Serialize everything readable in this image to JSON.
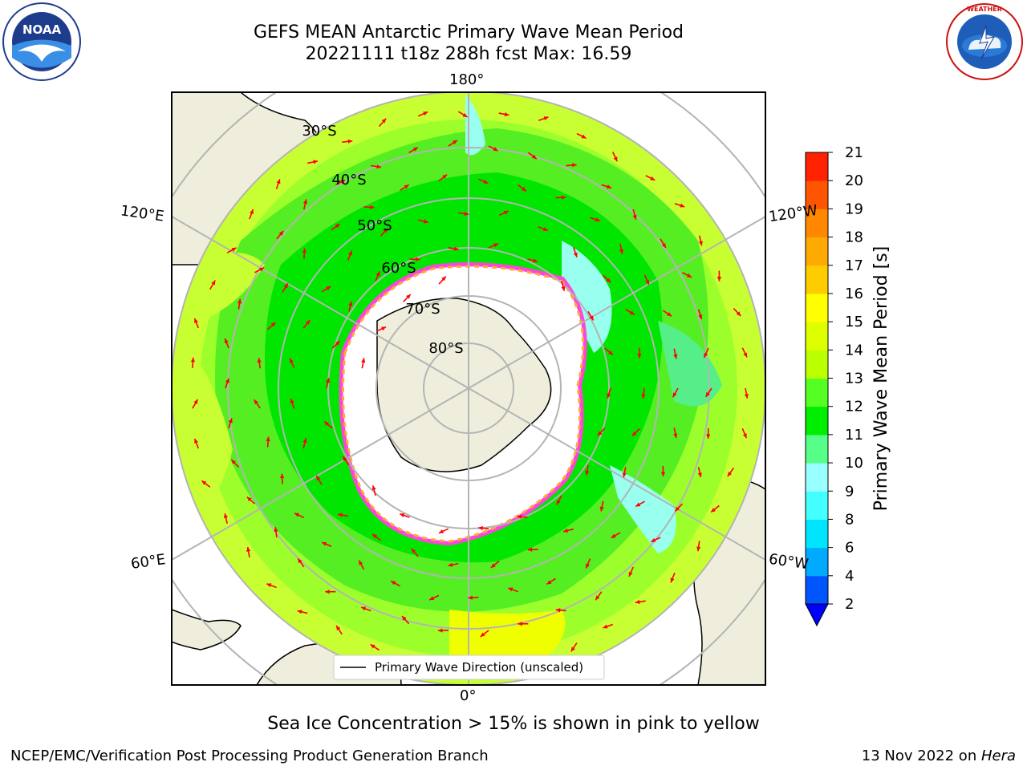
{
  "header": {
    "title_line1": "GEFS MEAN Antarctic Primary Wave Mean Period",
    "title_line2": "20221111 t18z 288h fcst   Max: 16.59"
  },
  "logos": {
    "noara_text": "NOAA",
    "noara_ring": "NATIONAL OCEANIC AND ATMOSPHERIC ADMINISTRATION · U.S. DEPARTMENT OF COMMERCE",
    "nws_ring": "NATIONAL WEATHER SERVICE"
  },
  "map": {
    "projection": "south polar stereographic",
    "lon_labels": {
      "top": "180°",
      "bottom": "0°",
      "left_upper": "120°E",
      "left_lower": "60°E",
      "right_upper": "120°W",
      "right_lower": "60°W"
    },
    "lat_labels": [
      "30°S",
      "40°S",
      "50°S",
      "60°S",
      "70°S",
      "80°S"
    ],
    "legend_label": "Primary Wave Direction (unscaled)",
    "arrow_color": "#ff0000"
  },
  "colorbar": {
    "label": "Primary Wave Mean Period [s]",
    "ticks": [
      "2",
      "4",
      "6",
      "8",
      "9",
      "10",
      "11",
      "12",
      "13",
      "14",
      "15",
      "16",
      "17",
      "18",
      "19",
      "20",
      "21"
    ],
    "colors": [
      "#0055ff",
      "#00aaff",
      "#00e5ff",
      "#44ffff",
      "#99ffff",
      "#55ff88",
      "#00ee00",
      "#55ff22",
      "#bbff00",
      "#ddff00",
      "#ffff00",
      "#ffcc00",
      "#ffaa00",
      "#ff8800",
      "#ff5500",
      "#ff2200"
    ],
    "extend_min_color": "#0000ff"
  },
  "caption": "Sea Ice Concentration > 15% is shown in pink to yellow",
  "footer": {
    "left": "NCEP/EMC/Verification Post Processing Product Generation Branch",
    "right_prefix": "13 Nov 2022 on ",
    "right_italic": "Hera"
  }
}
